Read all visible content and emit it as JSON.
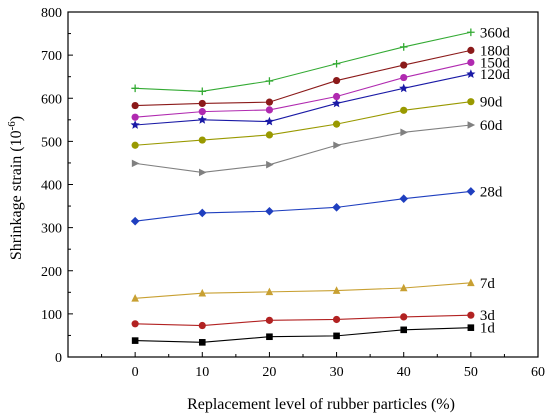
{
  "chart_data": {
    "type": "line",
    "xlabel": "Replacement level of rubber particles (%)",
    "ylabel": "Shrinkage strain (10",
    "ylabel_exponent": "-6",
    "ylabel_close": ")",
    "x": [
      0,
      10,
      20,
      30,
      40,
      50
    ],
    "xlim": [
      -10,
      60
    ],
    "ylim": [
      0,
      800
    ],
    "xticks": [
      0,
      10,
      20,
      30,
      40,
      50,
      60
    ],
    "yticks": [
      0,
      100,
      200,
      300,
      400,
      500,
      600,
      700,
      800
    ],
    "grid": false,
    "series": [
      {
        "name": "1d",
        "color": "#000000",
        "marker": "square",
        "values": [
          38,
          34,
          47,
          49,
          63,
          68
        ]
      },
      {
        "name": "3d",
        "color": "#b22222",
        "marker": "circle",
        "values": [
          77,
          73,
          85,
          87,
          93,
          97
        ]
      },
      {
        "name": "7d",
        "color": "#c8a032",
        "marker": "triangle-up",
        "values": [
          136,
          148,
          151,
          154,
          160,
          172
        ]
      },
      {
        "name": "28d",
        "color": "#1f3fbf",
        "marker": "diamond",
        "values": [
          315,
          334,
          338,
          347,
          367,
          384
        ]
      },
      {
        "name": "60d",
        "color": "#808080",
        "marker": "triangle-right",
        "values": [
          449,
          428,
          446,
          491,
          521,
          538
        ]
      },
      {
        "name": "90d",
        "color": "#999900",
        "marker": "circle",
        "values": [
          491,
          503,
          515,
          540,
          572,
          592
        ]
      },
      {
        "name": "120d",
        "color": "#1a1aa6",
        "marker": "star",
        "values": [
          538,
          550,
          546,
          588,
          623,
          656
        ]
      },
      {
        "name": "150d",
        "color": "#b02ab0",
        "marker": "circle",
        "values": [
          556,
          569,
          573,
          604,
          648,
          683
        ]
      },
      {
        "name": "180d",
        "color": "#8b1a1a",
        "marker": "circle",
        "values": [
          583,
          588,
          591,
          641,
          677,
          711
        ]
      },
      {
        "name": "360d",
        "color": "#33aa33",
        "marker": "plus",
        "values": [
          623,
          616,
          640,
          680,
          719,
          753
        ]
      }
    ]
  }
}
